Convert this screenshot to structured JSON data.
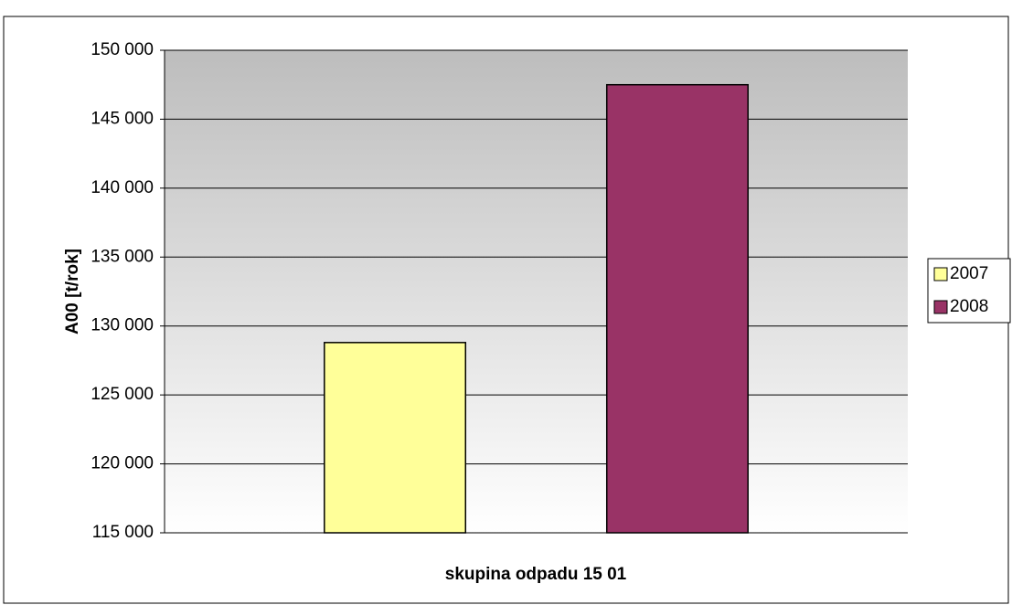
{
  "chart_data": {
    "type": "bar",
    "y_label": "A00 [t/rok]",
    "x_label": "skupina odpadu 15 01",
    "categories": [
      null
    ],
    "series": [
      {
        "name": "2007",
        "color": "#ffff99",
        "values": [
          128800
        ]
      },
      {
        "name": "2008",
        "color": "#993366",
        "values": [
          147500
        ]
      }
    ],
    "ylim": [
      115000,
      150000
    ],
    "yticks": [
      {
        "value": 115000,
        "label": "115 000"
      },
      {
        "value": 120000,
        "label": "120 000"
      },
      {
        "value": 125000,
        "label": "125 000"
      },
      {
        "value": 130000,
        "label": "130 000"
      },
      {
        "value": 135000,
        "label": "135 000"
      },
      {
        "value": 140000,
        "label": "140 000"
      },
      {
        "value": 145000,
        "label": "145 000"
      },
      {
        "value": 150000,
        "label": "150 000"
      }
    ],
    "grid": true,
    "legend": "right"
  }
}
